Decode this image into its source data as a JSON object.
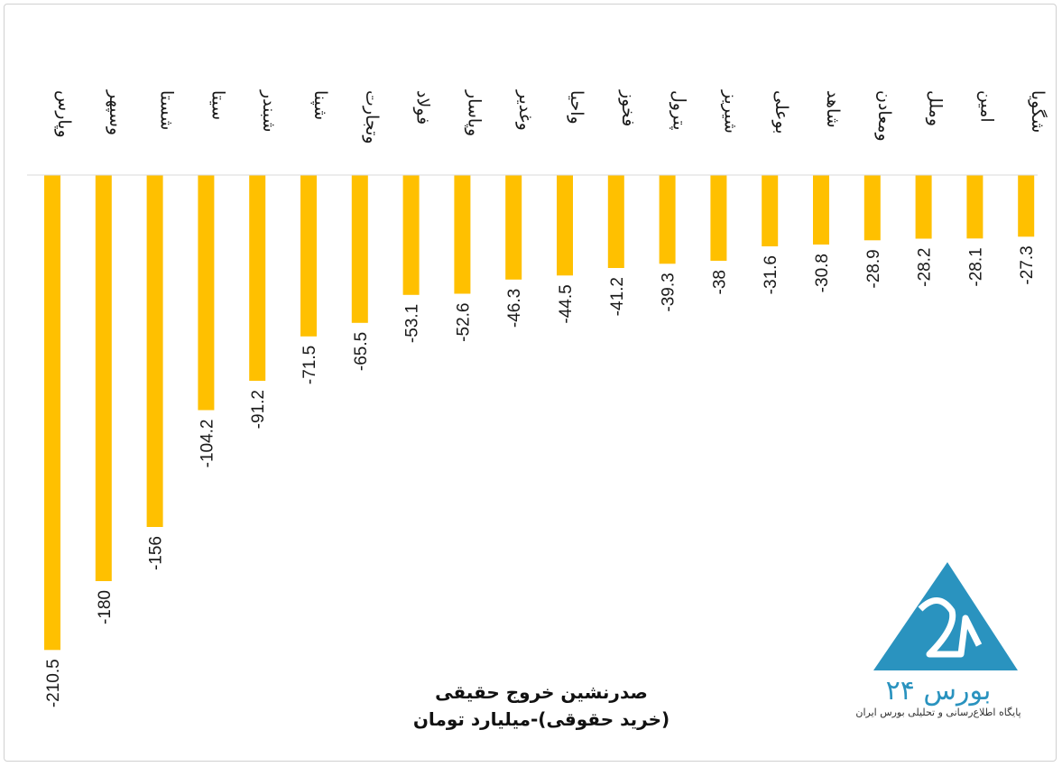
{
  "chart_data": {
    "type": "bar",
    "title_lines": [
      "صدرنشین خروج حقیقی",
      "(خرید حقوقی)-میلیارد تومان"
    ],
    "categories": [
      "وپارس",
      "وسپهر",
      "شستا",
      "سیتا",
      "شبندر",
      "شپنا",
      "وتجارت",
      "فولاد",
      "وپاسار",
      "وغدیر",
      "واحیا",
      "فخوز",
      "پترول",
      "شیریز",
      "بوعلی",
      "شاهد",
      "ومعادن",
      "وملل",
      "امین",
      "شگویا"
    ],
    "values": [
      -210.5,
      -180,
      -156,
      -104.2,
      -91.2,
      -71.5,
      -65.5,
      -53.1,
      -52.6,
      -46.3,
      -44.5,
      -41.2,
      -39.3,
      -38,
      -31.6,
      -30.8,
      -28.9,
      -28.2,
      -28.1,
      -27.3
    ],
    "value_labels": [
      "-210.5",
      "-180",
      "-156",
      "-104.2",
      "-91.2",
      "-71.5",
      "-65.5",
      "-53.1",
      "-52.6",
      "-46.3",
      "-44.5",
      "-41.2",
      "-39.3",
      "-38",
      "-31.6",
      "-30.8",
      "-28.9",
      "-28.2",
      "-28.1",
      "-27.3"
    ],
    "bar_color": "#FFC000",
    "ylim": [
      -210.5,
      0
    ],
    "grid": false,
    "legend": "none"
  },
  "logo": {
    "name": "بورس ۲۴",
    "tagline": "پایگاه اطلاع‌رسانی و تحلیلی بورس ایران",
    "color": "#2A93BF"
  }
}
